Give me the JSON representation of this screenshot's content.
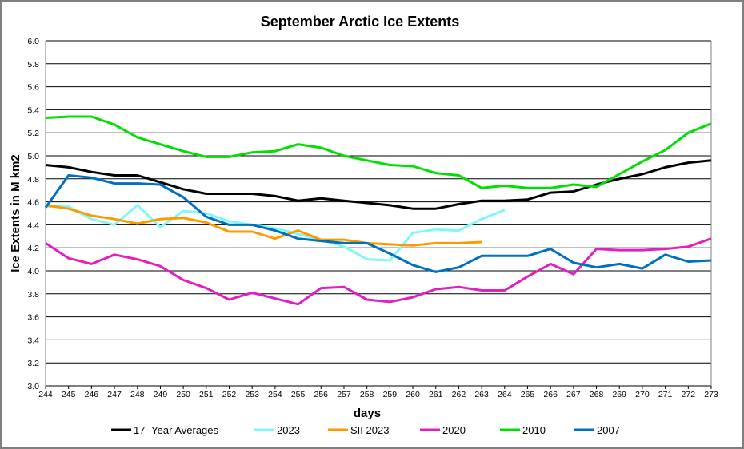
{
  "chart_data": {
    "type": "line",
    "title": "September Arctic Ice Extents",
    "xlabel": "days",
    "ylabel": "Ice Extents in M km2",
    "ylim": [
      3.0,
      6.0
    ],
    "xlim": [
      244,
      273
    ],
    "grid": true,
    "legend_position": "bottom",
    "y_ticks": [
      "3.0",
      "3.2",
      "3.4",
      "3.6",
      "3.8",
      "4.0",
      "4.2",
      "4.4",
      "4.6",
      "4.8",
      "5.0",
      "5.2",
      "5.4",
      "5.6",
      "5.8",
      "6.0"
    ],
    "x": [
      244,
      245,
      246,
      247,
      248,
      249,
      250,
      251,
      252,
      253,
      254,
      255,
      256,
      257,
      258,
      259,
      260,
      261,
      262,
      263,
      264,
      265,
      266,
      267,
      268,
      269,
      270,
      271,
      272,
      273
    ],
    "series": [
      {
        "name": "17- Year Averages",
        "color": "#000000",
        "values": [
          4.92,
          4.9,
          4.86,
          4.83,
          4.83,
          4.77,
          4.71,
          4.67,
          4.67,
          4.67,
          4.65,
          4.61,
          4.63,
          4.61,
          4.59,
          4.57,
          4.54,
          4.54,
          4.58,
          4.61,
          4.61,
          4.62,
          4.68,
          4.69,
          4.75,
          4.8,
          4.84,
          4.9,
          4.94,
          4.96
        ]
      },
      {
        "name": "2023",
        "color": "#80F8F8",
        "values": [
          4.56,
          4.56,
          4.45,
          4.4,
          4.57,
          4.38,
          4.52,
          4.5,
          4.43,
          4.4,
          4.37,
          4.32,
          4.27,
          4.21,
          4.1,
          4.09,
          4.33,
          4.36,
          4.35,
          4.45,
          4.53,
          null,
          null,
          null,
          null,
          null,
          null,
          null,
          null,
          null
        ]
      },
      {
        "name": "SII 2023",
        "color": "#FF9900",
        "values": [
          4.57,
          4.54,
          4.48,
          4.45,
          4.41,
          4.45,
          4.46,
          4.42,
          4.34,
          4.34,
          4.28,
          4.35,
          4.27,
          4.27,
          4.24,
          4.23,
          4.22,
          4.24,
          4.24,
          4.25,
          null,
          null,
          null,
          null,
          null,
          null,
          null,
          null,
          null,
          null
        ]
      },
      {
        "name": "2020",
        "color": "#E020C0",
        "values": [
          4.24,
          4.11,
          4.06,
          4.14,
          4.1,
          4.04,
          3.92,
          3.85,
          3.75,
          3.81,
          3.76,
          3.71,
          3.85,
          3.86,
          3.75,
          3.73,
          3.77,
          3.84,
          3.86,
          3.83,
          3.83,
          3.95,
          4.06,
          3.97,
          4.19,
          4.18,
          4.18,
          4.19,
          4.21,
          4.28
        ]
      },
      {
        "name": "2010",
        "color": "#00E000",
        "values": [
          5.33,
          5.34,
          5.34,
          5.27,
          5.16,
          5.1,
          5.04,
          4.99,
          4.99,
          5.03,
          5.04,
          5.1,
          5.07,
          5.0,
          4.96,
          4.92,
          4.91,
          4.85,
          4.83,
          4.72,
          4.74,
          4.72,
          4.72,
          4.75,
          4.73,
          4.84,
          4.95,
          5.05,
          5.2,
          5.28
        ]
      },
      {
        "name": "2007",
        "color": "#0070C0",
        "values": [
          4.55,
          4.83,
          4.81,
          4.76,
          4.76,
          4.75,
          4.64,
          4.47,
          4.4,
          4.4,
          4.35,
          4.28,
          4.26,
          4.24,
          4.24,
          4.15,
          4.05,
          3.99,
          4.03,
          4.13,
          4.13,
          4.13,
          4.19,
          4.07,
          4.03,
          4.06,
          4.02,
          4.14,
          4.08,
          4.09
        ]
      }
    ]
  }
}
